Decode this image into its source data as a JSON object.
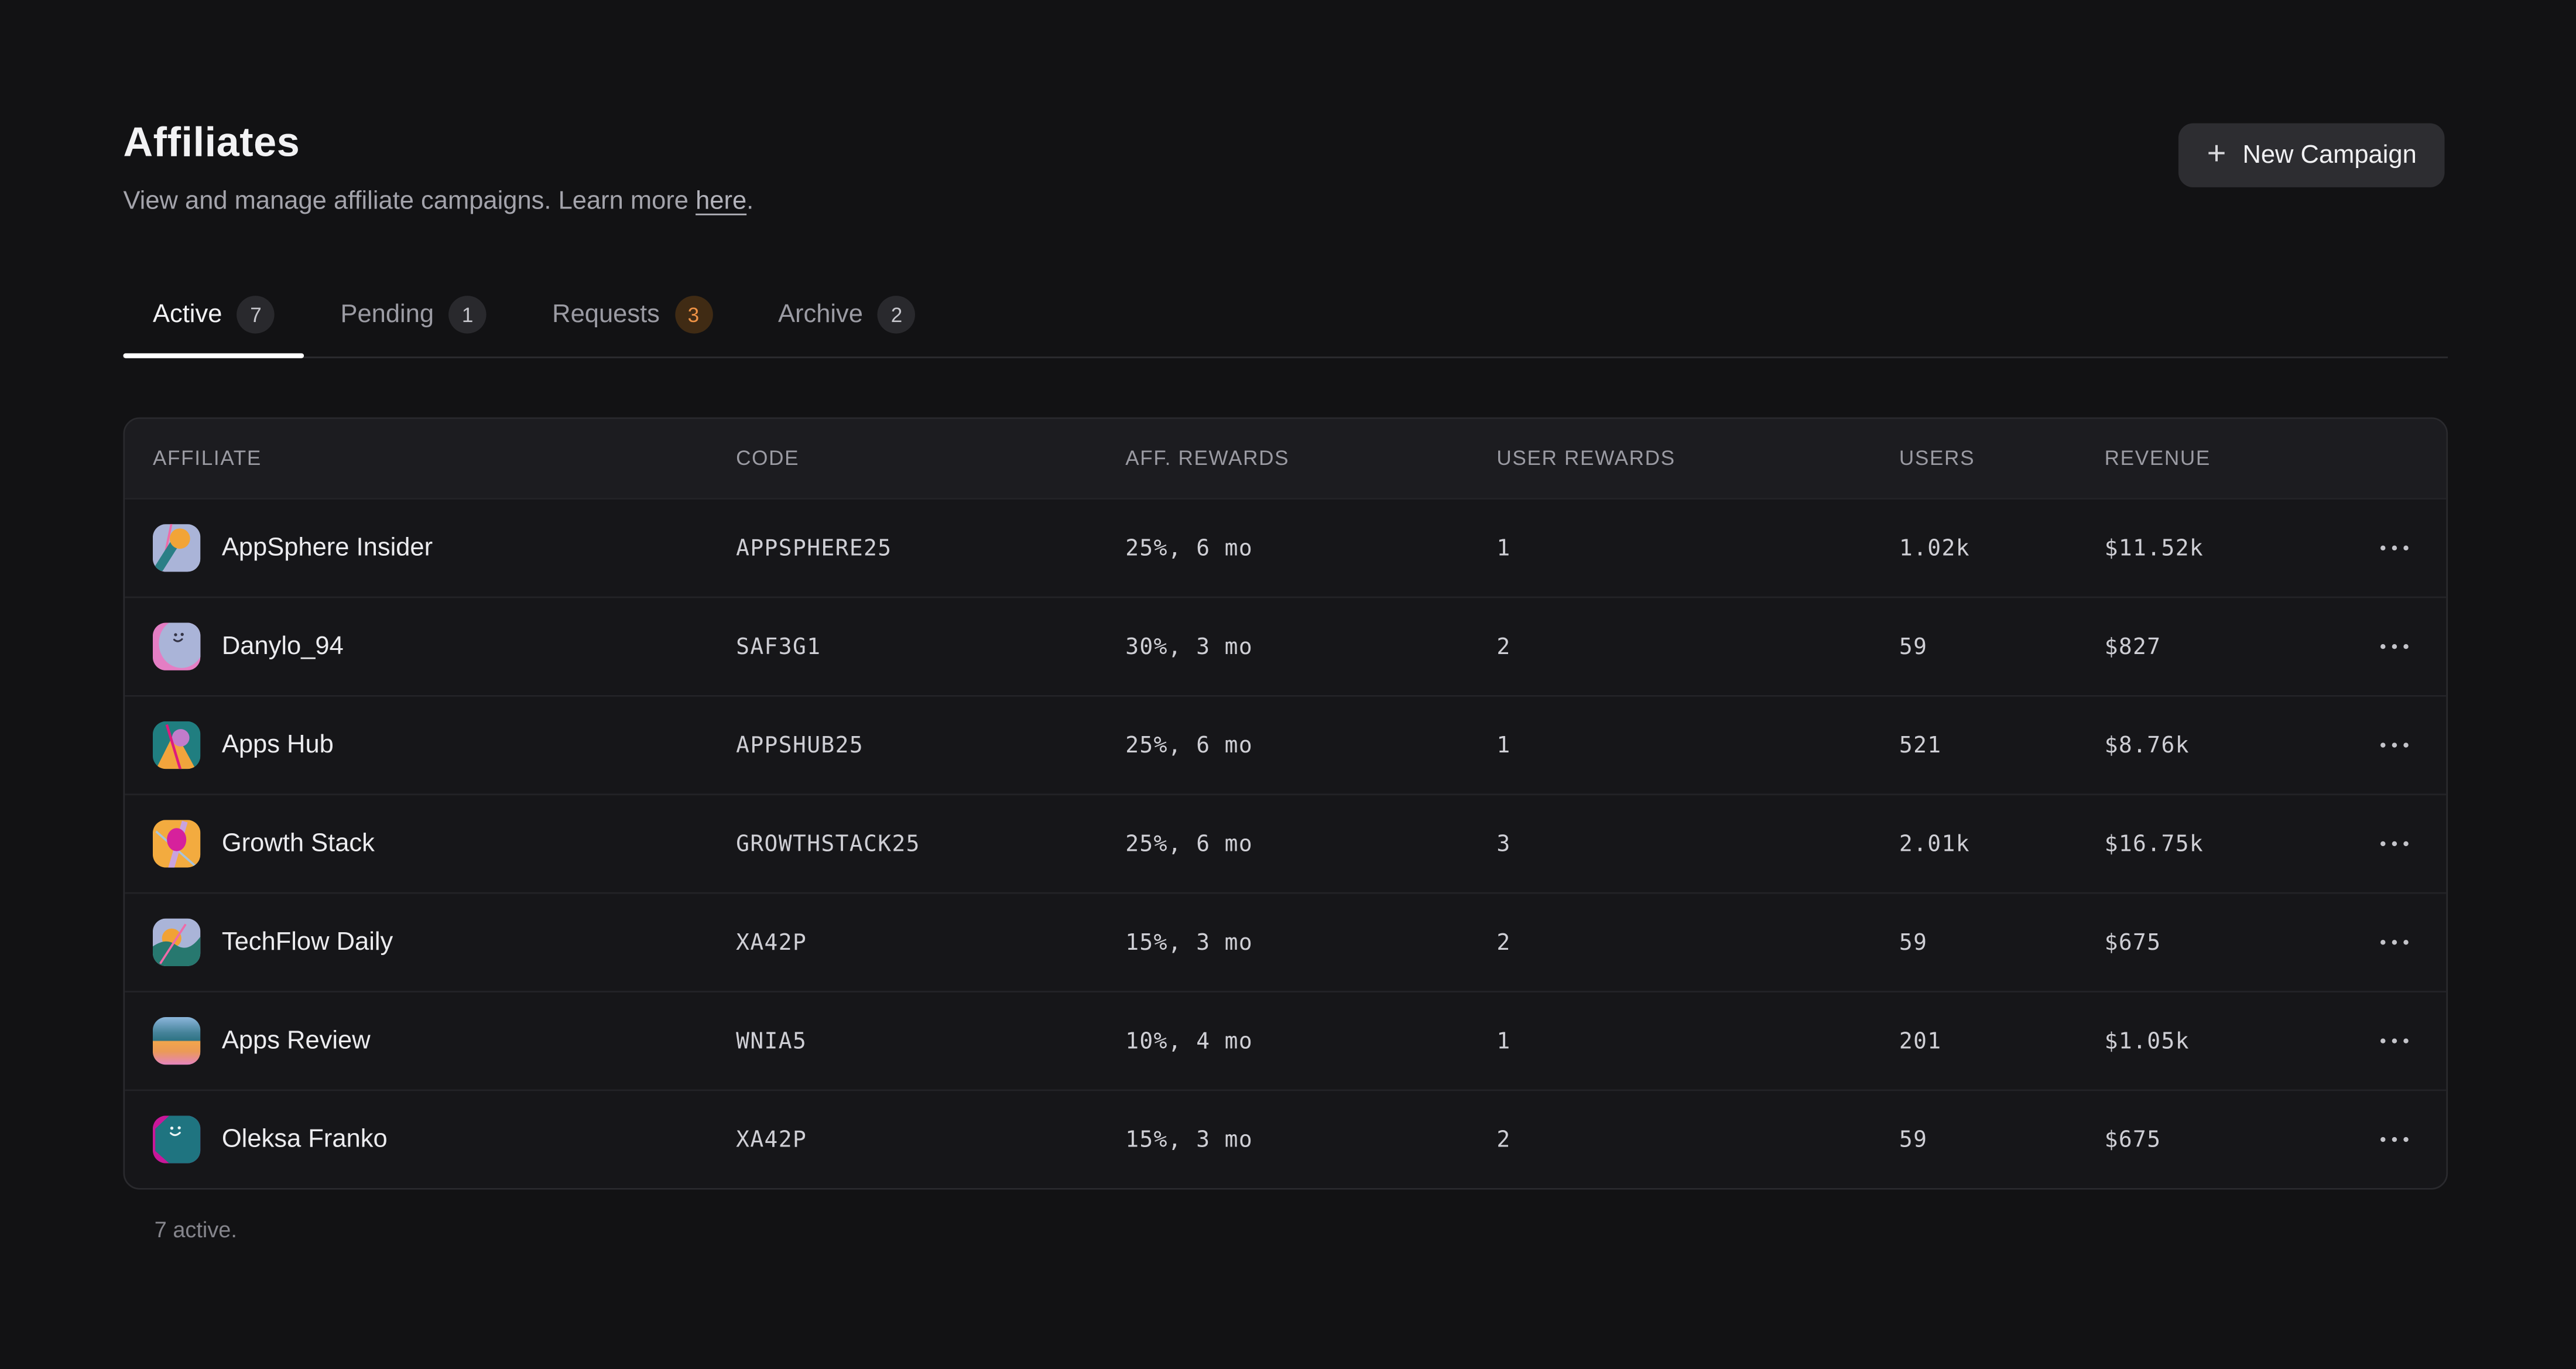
{
  "page": {
    "title": "Affiliates",
    "subtitle_prefix": "View and manage affiliate campaigns. Learn more ",
    "subtitle_link": "here",
    "subtitle_suffix": ".",
    "footer": "7 active."
  },
  "actions": {
    "plus_icon": "+",
    "new_campaign": "New Campaign"
  },
  "tabs": [
    {
      "label": "Active",
      "count": "7",
      "active": true,
      "badge": "default"
    },
    {
      "label": "Pending",
      "count": "1",
      "active": false,
      "badge": "default"
    },
    {
      "label": "Requests",
      "count": "3",
      "active": false,
      "badge": "orange"
    },
    {
      "label": "Archive",
      "count": "2",
      "active": false,
      "badge": "default"
    }
  ],
  "table": {
    "columns": [
      "AFFILIATE",
      "CODE",
      "AFF. REWARDS",
      "USER REWARDS",
      "USERS",
      "REVENUE"
    ],
    "rows": [
      {
        "name": "AppSphere Insider",
        "avatar": "appsphere",
        "code": "APPSPHERE25",
        "aff_rewards": "25%, 6 mo",
        "user_rewards": "1",
        "users": "1.02k",
        "revenue": "$11.52k"
      },
      {
        "name": "Danylo_94",
        "avatar": "danylo",
        "code": "SAF3G1",
        "aff_rewards": "30%, 3 mo",
        "user_rewards": "2",
        "users": "59",
        "revenue": "$827"
      },
      {
        "name": "Apps Hub",
        "avatar": "appshub",
        "code": "APPSHUB25",
        "aff_rewards": "25%, 6 mo",
        "user_rewards": "1",
        "users": "521",
        "revenue": "$8.76k"
      },
      {
        "name": "Growth Stack",
        "avatar": "growthstack",
        "code": "GROWTHSTACK25",
        "aff_rewards": "25%, 6 mo",
        "user_rewards": "3",
        "users": "2.01k",
        "revenue": "$16.75k"
      },
      {
        "name": "TechFlow Daily",
        "avatar": "techflow",
        "code": "XA42P",
        "aff_rewards": "15%, 3 mo",
        "user_rewards": "2",
        "users": "59",
        "revenue": "$675"
      },
      {
        "name": "Apps Review",
        "avatar": "appsreview",
        "code": "WNIA5",
        "aff_rewards": "10%, 4 mo",
        "user_rewards": "1",
        "users": "201",
        "revenue": "$1.05k"
      },
      {
        "name": "Oleksa Franko",
        "avatar": "oleksa",
        "code": "XA42P",
        "aff_rewards": "15%, 3 mo",
        "user_rewards": "2",
        "users": "59",
        "revenue": "$675"
      }
    ]
  },
  "colors": {
    "page_background": "#121214",
    "card_background": "#161619",
    "table_header_background": "#1c1c20",
    "border": "#2a2a2e",
    "active_tab_underline": "#ffffff",
    "badge_default_bg": "#29292d",
    "badge_orange_bg": "#402b14",
    "badge_orange_text": "#ee9245",
    "primary_text": "#f2f2f4",
    "muted_text": "#9b9ba3"
  }
}
